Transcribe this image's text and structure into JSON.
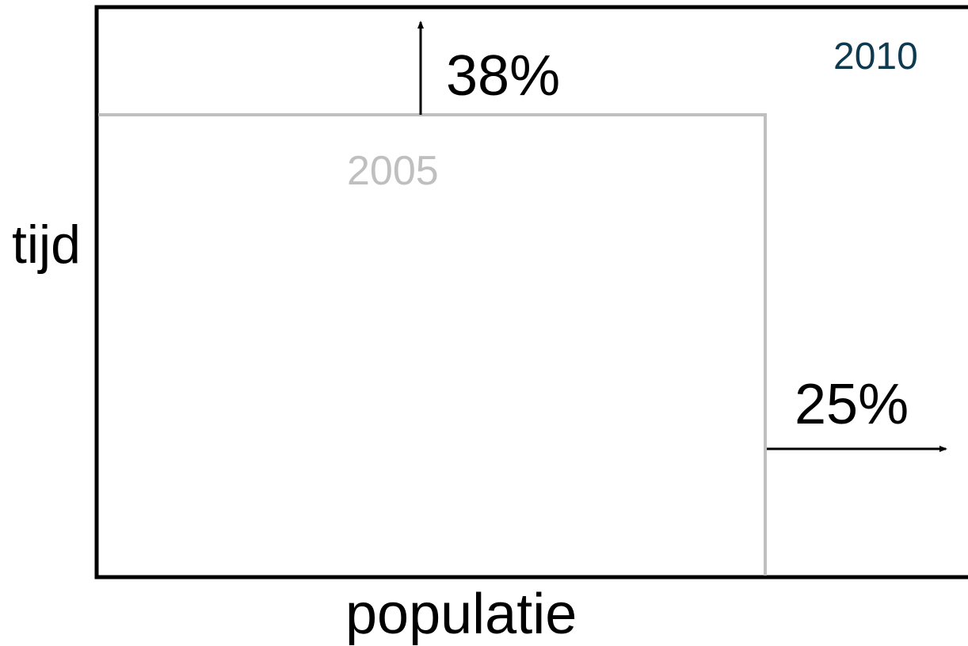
{
  "diagram": {
    "outer_label": "2010",
    "inner_label": "2005",
    "vertical_increase": "38%",
    "horizontal_increase": "25%",
    "y_axis_label": "tijd",
    "x_axis_label": "populatie"
  },
  "colors": {
    "outer_border": "#000000",
    "inner_border": "#bfbfbf",
    "outer_label": "#0d3a4f",
    "inner_label": "#bfbfbf",
    "text": "#000000"
  }
}
